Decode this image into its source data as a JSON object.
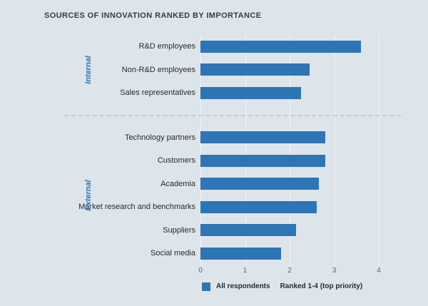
{
  "title": "SOURCES OF INNOVATION RANKED BY IMPORTANCE",
  "colors": {
    "bar": "#2e75b5",
    "background": "#dee5ea",
    "group_label": "#2e75b5"
  },
  "legend": {
    "all_respondents": "All respondents",
    "note": "Ranked 1-4 (top priority)"
  },
  "chart_data": {
    "type": "bar",
    "orientation": "horizontal",
    "title": "SOURCES OF INNOVATION RANKED BY IMPORTANCE",
    "xlabel": "",
    "ylabel": "",
    "xlim": [
      0,
      4
    ],
    "xticks": [
      0,
      1,
      2,
      3,
      4
    ],
    "grid": true,
    "legend_position": "bottom",
    "groups": [
      {
        "name": "Internal",
        "categories": [
          "R&D employees",
          "Non-R&D employees",
          "Sales representatives"
        ],
        "values": [
          3.6,
          2.45,
          2.25
        ]
      },
      {
        "name": "External",
        "categories": [
          "Technology partners",
          "Customers",
          "Academia",
          "Market research and benchmarks",
          "Suppliers",
          "Social media"
        ],
        "values": [
          2.8,
          2.8,
          2.65,
          2.6,
          2.15,
          1.8
        ]
      }
    ],
    "legend_entries": [
      {
        "swatch": "#2e75b5",
        "label": "All respondents"
      },
      {
        "label": "Ranked 1-4 (top priority)"
      }
    ]
  }
}
